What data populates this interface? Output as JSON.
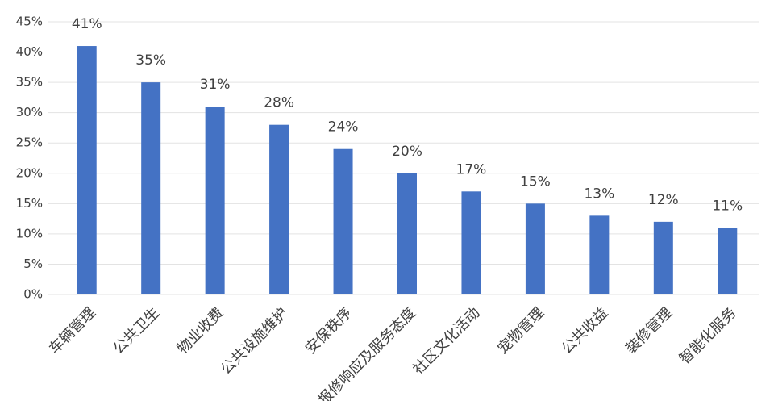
{
  "chart_data": {
    "type": "bar",
    "categories": [
      "车辆管理",
      "公共卫生",
      "物业收费",
      "公共设施维护",
      "安保秩序",
      "报修响应及服务态度",
      "社区文化活动",
      "宠物管理",
      "公共收益",
      "装修管理",
      "智能化服务"
    ],
    "values": [
      41,
      35,
      31,
      28,
      24,
      20,
      17,
      15,
      13,
      12,
      11
    ],
    "value_labels": [
      "41%",
      "35%",
      "31%",
      "28%",
      "24%",
      "20%",
      "17%",
      "15%",
      "13%",
      "12%",
      "11%"
    ],
    "color": "#4472c4",
    "ylim": [
      0,
      45
    ],
    "yticks": [
      {
        "value": 0,
        "label": "0%"
      },
      {
        "value": 5,
        "label": "5%"
      },
      {
        "value": 10,
        "label": "10%"
      },
      {
        "value": 15,
        "label": "15%"
      },
      {
        "value": 20,
        "label": "20%"
      },
      {
        "value": 25,
        "label": "25%"
      },
      {
        "value": 30,
        "label": "30%"
      },
      {
        "value": 35,
        "label": "35%"
      },
      {
        "value": 40,
        "label": "40%"
      },
      {
        "value": 45,
        "label": "45%"
      }
    ],
    "grid": true
  }
}
